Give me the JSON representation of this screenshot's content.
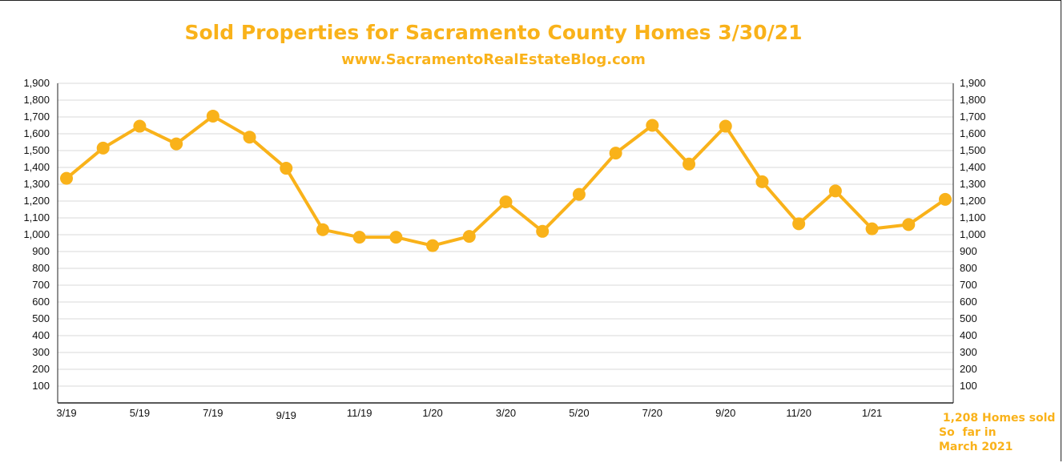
{
  "colors": {
    "line": "#F9B21A",
    "grid": "#d9d9d9",
    "axis": "#222222"
  },
  "note": {
    "line1": " 1,208 Homes sold",
    "line2": "So  far in",
    "line3": "March 2021"
  },
  "chart_data": {
    "type": "line",
    "title": "Sold Properties for Sacramento County Homes 3/30/21",
    "subtitle": "www.SacramentoRealEstateBlog.com",
    "xlabel": "",
    "ylabel": "",
    "ylim": [
      0,
      1900
    ],
    "yticks": [
      100,
      200,
      300,
      400,
      500,
      600,
      700,
      800,
      900,
      1000,
      1100,
      1200,
      1300,
      1400,
      1500,
      1600,
      1700,
      1800,
      1900
    ],
    "ytick_labels": [
      "100",
      "200",
      "300",
      "400",
      "500",
      "600",
      "700",
      "800",
      "900",
      "1,000",
      "1,100",
      "1,200",
      "1,300",
      "1,400",
      "1,500",
      "1,600",
      "1,700",
      "1,800",
      "1,900"
    ],
    "y_axes": "both",
    "grid": true,
    "categories": [
      "3/19",
      "4/19",
      "5/19",
      "6/19",
      "7/19",
      "8/19",
      "9/19",
      "10/19",
      "11/19",
      "12/19",
      "1/20",
      "2/20",
      "3/20",
      "4/20",
      "5/20",
      "6/20",
      "7/20",
      "8/20",
      "9/20",
      "10/20",
      "11/20",
      "12/20",
      "1/21",
      "2/21",
      "3/21"
    ],
    "x_tick_labels": [
      {
        "index": 0,
        "label": "3/19"
      },
      {
        "index": 2,
        "label": "5/19"
      },
      {
        "index": 4,
        "label": "7/19"
      },
      {
        "index": 6,
        "label": "9/19"
      },
      {
        "index": 8,
        "label": "11/19"
      },
      {
        "index": 10,
        "label": "1/20"
      },
      {
        "index": 12,
        "label": "3/20"
      },
      {
        "index": 14,
        "label": "5/20"
      },
      {
        "index": 16,
        "label": "7/20"
      },
      {
        "index": 18,
        "label": "9/20"
      },
      {
        "index": 20,
        "label": "11/20"
      },
      {
        "index": 22,
        "label": "1/21"
      }
    ],
    "series": [
      {
        "values": [
          1335,
          1515,
          1645,
          1540,
          1705,
          1580,
          1395,
          1030,
          985,
          985,
          935,
          990,
          1195,
          1020,
          1240,
          1485,
          1650,
          1420,
          1645,
          1315,
          1065,
          1260,
          1035,
          1060,
          1210
        ]
      }
    ]
  }
}
